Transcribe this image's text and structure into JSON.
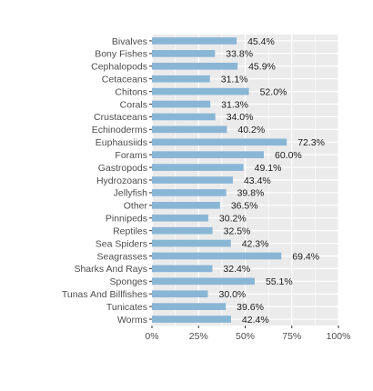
{
  "chart_data": {
    "type": "bar",
    "orientation": "horizontal",
    "categories": [
      "Bivalves",
      "Bony Fishes",
      "Cephalopods",
      "Cetaceans",
      "Chitons",
      "Corals",
      "Crustaceans",
      "Echinoderms",
      "Euphausiids",
      "Forams",
      "Gastropods",
      "Hydrozoans",
      "Jellyfish",
      "Other",
      "Pinnipeds",
      "Reptiles",
      "Sea Spiders",
      "Seagrasses",
      "Sharks And Rays",
      "Sponges",
      "Tunas And Billfishes",
      "Tunicates",
      "Worms"
    ],
    "values": [
      45.4,
      33.8,
      45.9,
      31.1,
      52.0,
      31.3,
      34.0,
      40.2,
      72.3,
      60.0,
      49.1,
      43.4,
      39.8,
      36.5,
      30.2,
      32.5,
      42.3,
      69.4,
      32.4,
      55.1,
      30.0,
      39.6,
      42.4
    ],
    "data_labels": [
      "45.4%",
      "33.8%",
      "45.9%",
      "31.1%",
      "52.0%",
      "31.3%",
      "34.0%",
      "40.2%",
      "72.3%",
      "60.0%",
      "49.1%",
      "43.4%",
      "39.8%",
      "36.5%",
      "30.2%",
      "32.5%",
      "42.3%",
      "69.4%",
      "32.4%",
      "55.1%",
      "30.0%",
      "39.6%",
      "42.4%"
    ],
    "xlim": [
      0,
      100
    ],
    "x_ticks": [
      0,
      25,
      50,
      75,
      100
    ],
    "x_tick_labels": [
      "0%",
      "25%",
      "50%",
      "75%",
      "100%"
    ],
    "title": "",
    "xlabel": "",
    "ylabel": "",
    "grid": true,
    "colors": {
      "bar": "#8AB6D6",
      "panel": "#EBEBEB",
      "grid": "#FFFFFF"
    }
  }
}
